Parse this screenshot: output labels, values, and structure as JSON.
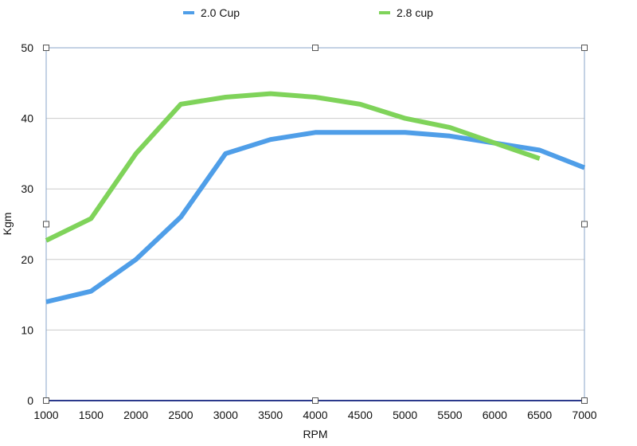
{
  "chart_data": {
    "type": "line",
    "xlabel": "RPM",
    "ylabel": "Kgm",
    "xlim": [
      1000,
      7000
    ],
    "ylim": [
      0,
      50
    ],
    "x_ticks": [
      1000,
      1500,
      2000,
      2500,
      3000,
      3500,
      4000,
      4500,
      5000,
      5500,
      6000,
      6500,
      7000
    ],
    "y_ticks": [
      0,
      10,
      20,
      30,
      40,
      50
    ],
    "grid": "horizontal",
    "legend_position": "top",
    "series": [
      {
        "name": "2.0 Cup",
        "color": "#4f9ee8",
        "points": [
          [
            1000,
            14
          ],
          [
            1500,
            15.5
          ],
          [
            2000,
            20
          ],
          [
            2500,
            26
          ],
          [
            3000,
            35
          ],
          [
            3500,
            37
          ],
          [
            4000,
            38
          ],
          [
            4500,
            38
          ],
          [
            5000,
            38
          ],
          [
            5500,
            37.5
          ],
          [
            6000,
            36.5
          ],
          [
            6500,
            35.5
          ],
          [
            7000,
            33
          ]
        ]
      },
      {
        "name": "2.8 cup",
        "color": "#7fd35a",
        "points": [
          [
            1000,
            22.7
          ],
          [
            1500,
            25.8
          ],
          [
            2000,
            35
          ],
          [
            2500,
            42
          ],
          [
            3000,
            43
          ],
          [
            3500,
            43.5
          ],
          [
            4000,
            43
          ],
          [
            4500,
            42
          ],
          [
            5000,
            40
          ],
          [
            5500,
            38.7
          ],
          [
            6000,
            36.5
          ],
          [
            6500,
            34.3
          ]
        ]
      }
    ]
  }
}
